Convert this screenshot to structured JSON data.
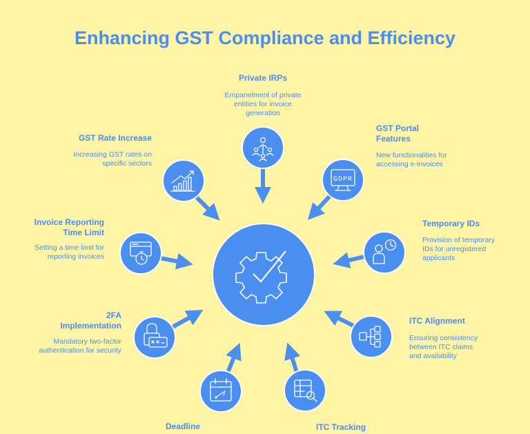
{
  "title": "Enhancing GST Compliance and Efficiency",
  "colors": {
    "background": "#FDF4A6",
    "accent": "#4A8EF0"
  },
  "center": {
    "icon": "gear-check-icon"
  },
  "nodes": [
    {
      "id": "private-irps",
      "label": "Private IRPs",
      "desc": "Empanelment of private entities for invoice generation",
      "icon": "people-network-icon"
    },
    {
      "id": "gst-portal-features",
      "label": "GST Portal Features",
      "desc": "New functionalities for accessing e-invoices",
      "icon": "gdpr-monitor-icon"
    },
    {
      "id": "temporary-ids",
      "label": "Temporary IDs",
      "desc": "Provision of temporary IDs for unregistered applicants",
      "icon": "person-clock-icon"
    },
    {
      "id": "itc-alignment",
      "label": "ITC Alignment",
      "desc": "Ensuring consistency between ITC claims and availability",
      "icon": "flow-branches-icon"
    },
    {
      "id": "itc-tracking",
      "label": "ITC Tracking",
      "desc": "",
      "icon": "table-search-icon"
    },
    {
      "id": "deadline",
      "label": "Deadline",
      "desc": "",
      "icon": "calendar-icon"
    },
    {
      "id": "2fa-implementation",
      "label": "2FA Implementation",
      "desc": "Mandatory two-factor authentication for security",
      "icon": "lock-password-icon"
    },
    {
      "id": "invoice-reporting-time-limit",
      "label": "Invoice Reporting Time Limit",
      "desc": "Setting a time limit for reporting invoices",
      "icon": "browser-timer-icon"
    },
    {
      "id": "gst-rate-increase",
      "label": "GST Rate Increase",
      "desc": "Increasing GST rates on specific sectors",
      "icon": "bar-chart-up-icon"
    }
  ]
}
